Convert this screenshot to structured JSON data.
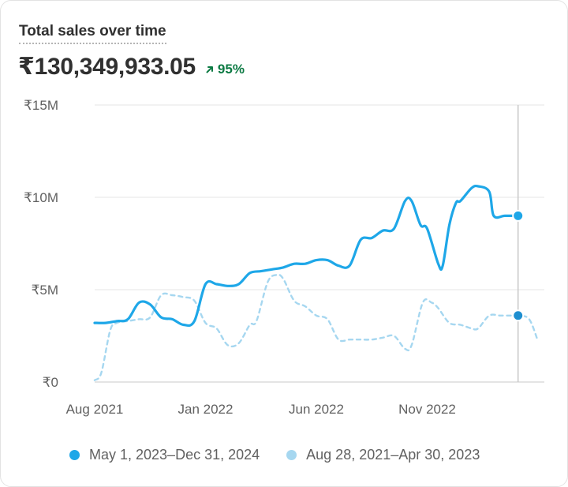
{
  "card": {
    "title": "Total sales over time",
    "metric": "₹130,349,933.05",
    "change": "95%",
    "change_icon": "arrow-up-right-icon"
  },
  "colors": {
    "current": "#1ea7e8",
    "previous": "#a6d7f0",
    "grid": "#ebebeb",
    "cursor": "#c8c8c8",
    "positive": "#0c7a43"
  },
  "chart_data": {
    "type": "line",
    "title": "Total sales over time",
    "xlabel": "",
    "ylabel": "",
    "xlim": [
      0,
      20
    ],
    "ylim": [
      0,
      15
    ],
    "x_unit": "months since Aug 2021",
    "y_unit": "million ₹",
    "x_ticks": [
      {
        "x": 0,
        "label": "Aug 2021"
      },
      {
        "x": 5,
        "label": "Jan 2022"
      },
      {
        "x": 10,
        "label": "Jun 2022"
      },
      {
        "x": 15,
        "label": "Nov 2022"
      }
    ],
    "y_ticks": [
      {
        "y": 0,
        "label": "₹0"
      },
      {
        "y": 5,
        "label": "₹5M"
      },
      {
        "y": 10,
        "label": "₹10M"
      },
      {
        "y": 15,
        "label": "₹15M"
      }
    ],
    "grid": true,
    "legend_position": "bottom",
    "cursor_x": 19.1,
    "series": [
      {
        "name": "May 1, 2023–Dec 31, 2024",
        "style": "solid",
        "x": [
          0,
          0.5,
          1,
          1.5,
          2,
          2.5,
          3,
          3.5,
          4,
          4.5,
          5,
          5.5,
          6,
          6.5,
          7,
          7.5,
          8,
          8.5,
          9,
          9.5,
          10,
          10.5,
          11,
          11.5,
          12,
          12.5,
          13,
          13.5,
          14,
          14.3,
          14.7,
          15,
          15.5,
          15.7,
          16,
          16.3,
          16.5,
          17,
          17.3,
          17.8,
          18,
          18.5,
          19.1
        ],
        "y": [
          3.2,
          3.2,
          3.3,
          3.4,
          4.3,
          4.2,
          3.5,
          3.4,
          3.1,
          3.3,
          5.3,
          5.3,
          5.2,
          5.3,
          5.9,
          6.0,
          6.1,
          6.2,
          6.4,
          6.4,
          6.6,
          6.6,
          6.3,
          6.3,
          7.7,
          7.8,
          8.2,
          8.3,
          9.8,
          9.8,
          8.5,
          8.3,
          6.4,
          6.3,
          8.5,
          9.7,
          9.8,
          10.5,
          10.6,
          10.3,
          9.0,
          9.0,
          9.0
        ]
      },
      {
        "name": "Aug 28, 2021–Apr 30, 2023",
        "style": "dashed",
        "x": [
          0,
          0.3,
          0.7,
          1,
          1.5,
          2,
          2.5,
          3,
          3.5,
          4,
          4.5,
          5,
          5.5,
          6,
          6.5,
          7,
          7.3,
          7.8,
          8.2,
          8.5,
          9,
          9.5,
          10,
          10.5,
          11,
          11.5,
          12,
          12.5,
          13,
          13.5,
          14,
          14.3,
          14.8,
          15.2,
          15.5,
          16,
          16.5,
          17,
          17.3,
          17.8,
          18.3,
          18.8,
          19.1,
          19.6,
          20
        ],
        "y": [
          0.1,
          0.5,
          2.8,
          3.2,
          3.3,
          3.4,
          3.5,
          4.7,
          4.7,
          4.6,
          4.4,
          3.2,
          2.9,
          2.0,
          2.1,
          3.1,
          3.3,
          5.4,
          5.8,
          5.6,
          4.4,
          4.1,
          3.6,
          3.4,
          2.3,
          2.3,
          2.3,
          2.3,
          2.4,
          2.5,
          1.8,
          2.0,
          4.3,
          4.3,
          4.0,
          3.2,
          3.1,
          2.9,
          2.9,
          3.6,
          3.6,
          3.6,
          3.6,
          3.4,
          2.2
        ]
      }
    ]
  }
}
